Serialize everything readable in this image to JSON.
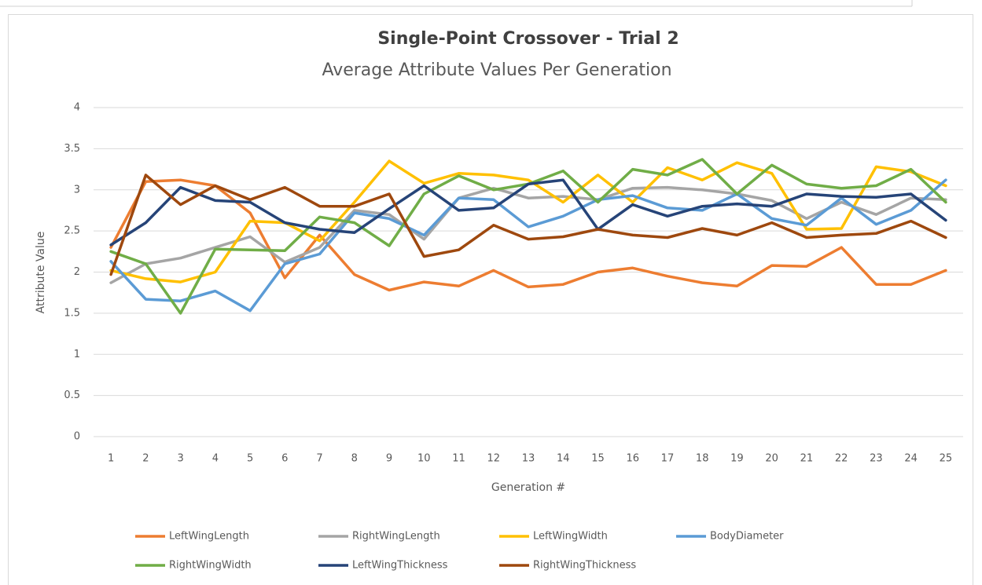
{
  "chart_data": {
    "type": "line",
    "title": "Single-Point Crossover - Trial 2",
    "subtitle": "Average Attribute Values Per Generation",
    "x_label": "Generation #",
    "y_label": "Attribute Value",
    "categories": [
      "1",
      "2",
      "3",
      "4",
      "5",
      "6",
      "7",
      "8",
      "9",
      "10",
      "11",
      "12",
      "13",
      "14",
      "15",
      "16",
      "17",
      "18",
      "19",
      "20",
      "21",
      "22",
      "23",
      "24",
      "25"
    ],
    "ylim": [
      0,
      4
    ],
    "yticks": [
      0,
      0.5,
      1,
      1.5,
      2,
      2.5,
      3,
      3.5,
      4
    ],
    "grid": true,
    "legend": "bottom",
    "series": [
      {
        "name": "LeftWingLength",
        "color": "#ed7d31",
        "values": [
          2.3,
          3.1,
          3.12,
          3.05,
          2.72,
          1.93,
          2.45,
          1.97,
          1.78,
          1.88,
          1.83,
          2.02,
          1.82,
          1.85,
          2.0,
          2.05,
          1.95,
          1.87,
          1.83,
          2.08,
          2.07,
          2.3,
          1.85,
          1.85,
          2.02
        ]
      },
      {
        "name": "RightWingLength",
        "color": "#a5a5a5",
        "values": [
          1.87,
          2.1,
          2.17,
          2.3,
          2.43,
          2.12,
          2.3,
          2.75,
          2.7,
          2.4,
          2.9,
          3.02,
          2.9,
          2.92,
          2.88,
          3.02,
          3.03,
          3.0,
          2.95,
          2.87,
          2.65,
          2.85,
          2.7,
          2.9,
          2.88
        ]
      },
      {
        "name": "LeftWingWidth",
        "color": "#ffc000",
        "values": [
          2.02,
          1.92,
          1.88,
          2.0,
          2.62,
          2.6,
          2.38,
          2.85,
          3.35,
          3.08,
          3.2,
          3.18,
          3.12,
          2.85,
          3.18,
          2.85,
          3.27,
          3.12,
          3.33,
          3.2,
          2.52,
          2.53,
          3.28,
          3.22,
          3.05
        ]
      },
      {
        "name": "BodyDiameter",
        "color": "#5b9bd5",
        "values": [
          2.13,
          1.67,
          1.65,
          1.77,
          1.53,
          2.1,
          2.22,
          2.72,
          2.65,
          2.45,
          2.9,
          2.88,
          2.55,
          2.68,
          2.88,
          2.93,
          2.78,
          2.75,
          2.95,
          2.65,
          2.57,
          2.9,
          2.58,
          2.75,
          3.12
        ]
      },
      {
        "name": "RightWingWidth",
        "color": "#70ad47",
        "values": [
          2.25,
          2.1,
          1.5,
          2.28,
          2.27,
          2.26,
          2.67,
          2.6,
          2.32,
          2.95,
          3.17,
          3.0,
          3.07,
          3.23,
          2.85,
          3.25,
          3.18,
          3.37,
          2.95,
          3.3,
          3.07,
          3.02,
          3.05,
          3.25,
          2.85
        ]
      },
      {
        "name": "LeftWingThickness",
        "color": "#264478",
        "values": [
          2.33,
          2.6,
          3.03,
          2.87,
          2.85,
          2.6,
          2.52,
          2.48,
          2.77,
          3.05,
          2.75,
          2.78,
          3.07,
          3.12,
          2.52,
          2.82,
          2.68,
          2.8,
          2.83,
          2.8,
          2.95,
          2.92,
          2.91,
          2.95,
          2.63
        ]
      },
      {
        "name": "RightWingThickness",
        "color": "#9e480e",
        "values": [
          1.97,
          3.18,
          2.82,
          3.05,
          2.88,
          3.03,
          2.8,
          2.8,
          2.95,
          2.19,
          2.27,
          2.57,
          2.4,
          2.43,
          2.52,
          2.45,
          2.42,
          2.53,
          2.45,
          2.6,
          2.42,
          2.45,
          2.47,
          2.62,
          2.42
        ]
      }
    ]
  }
}
